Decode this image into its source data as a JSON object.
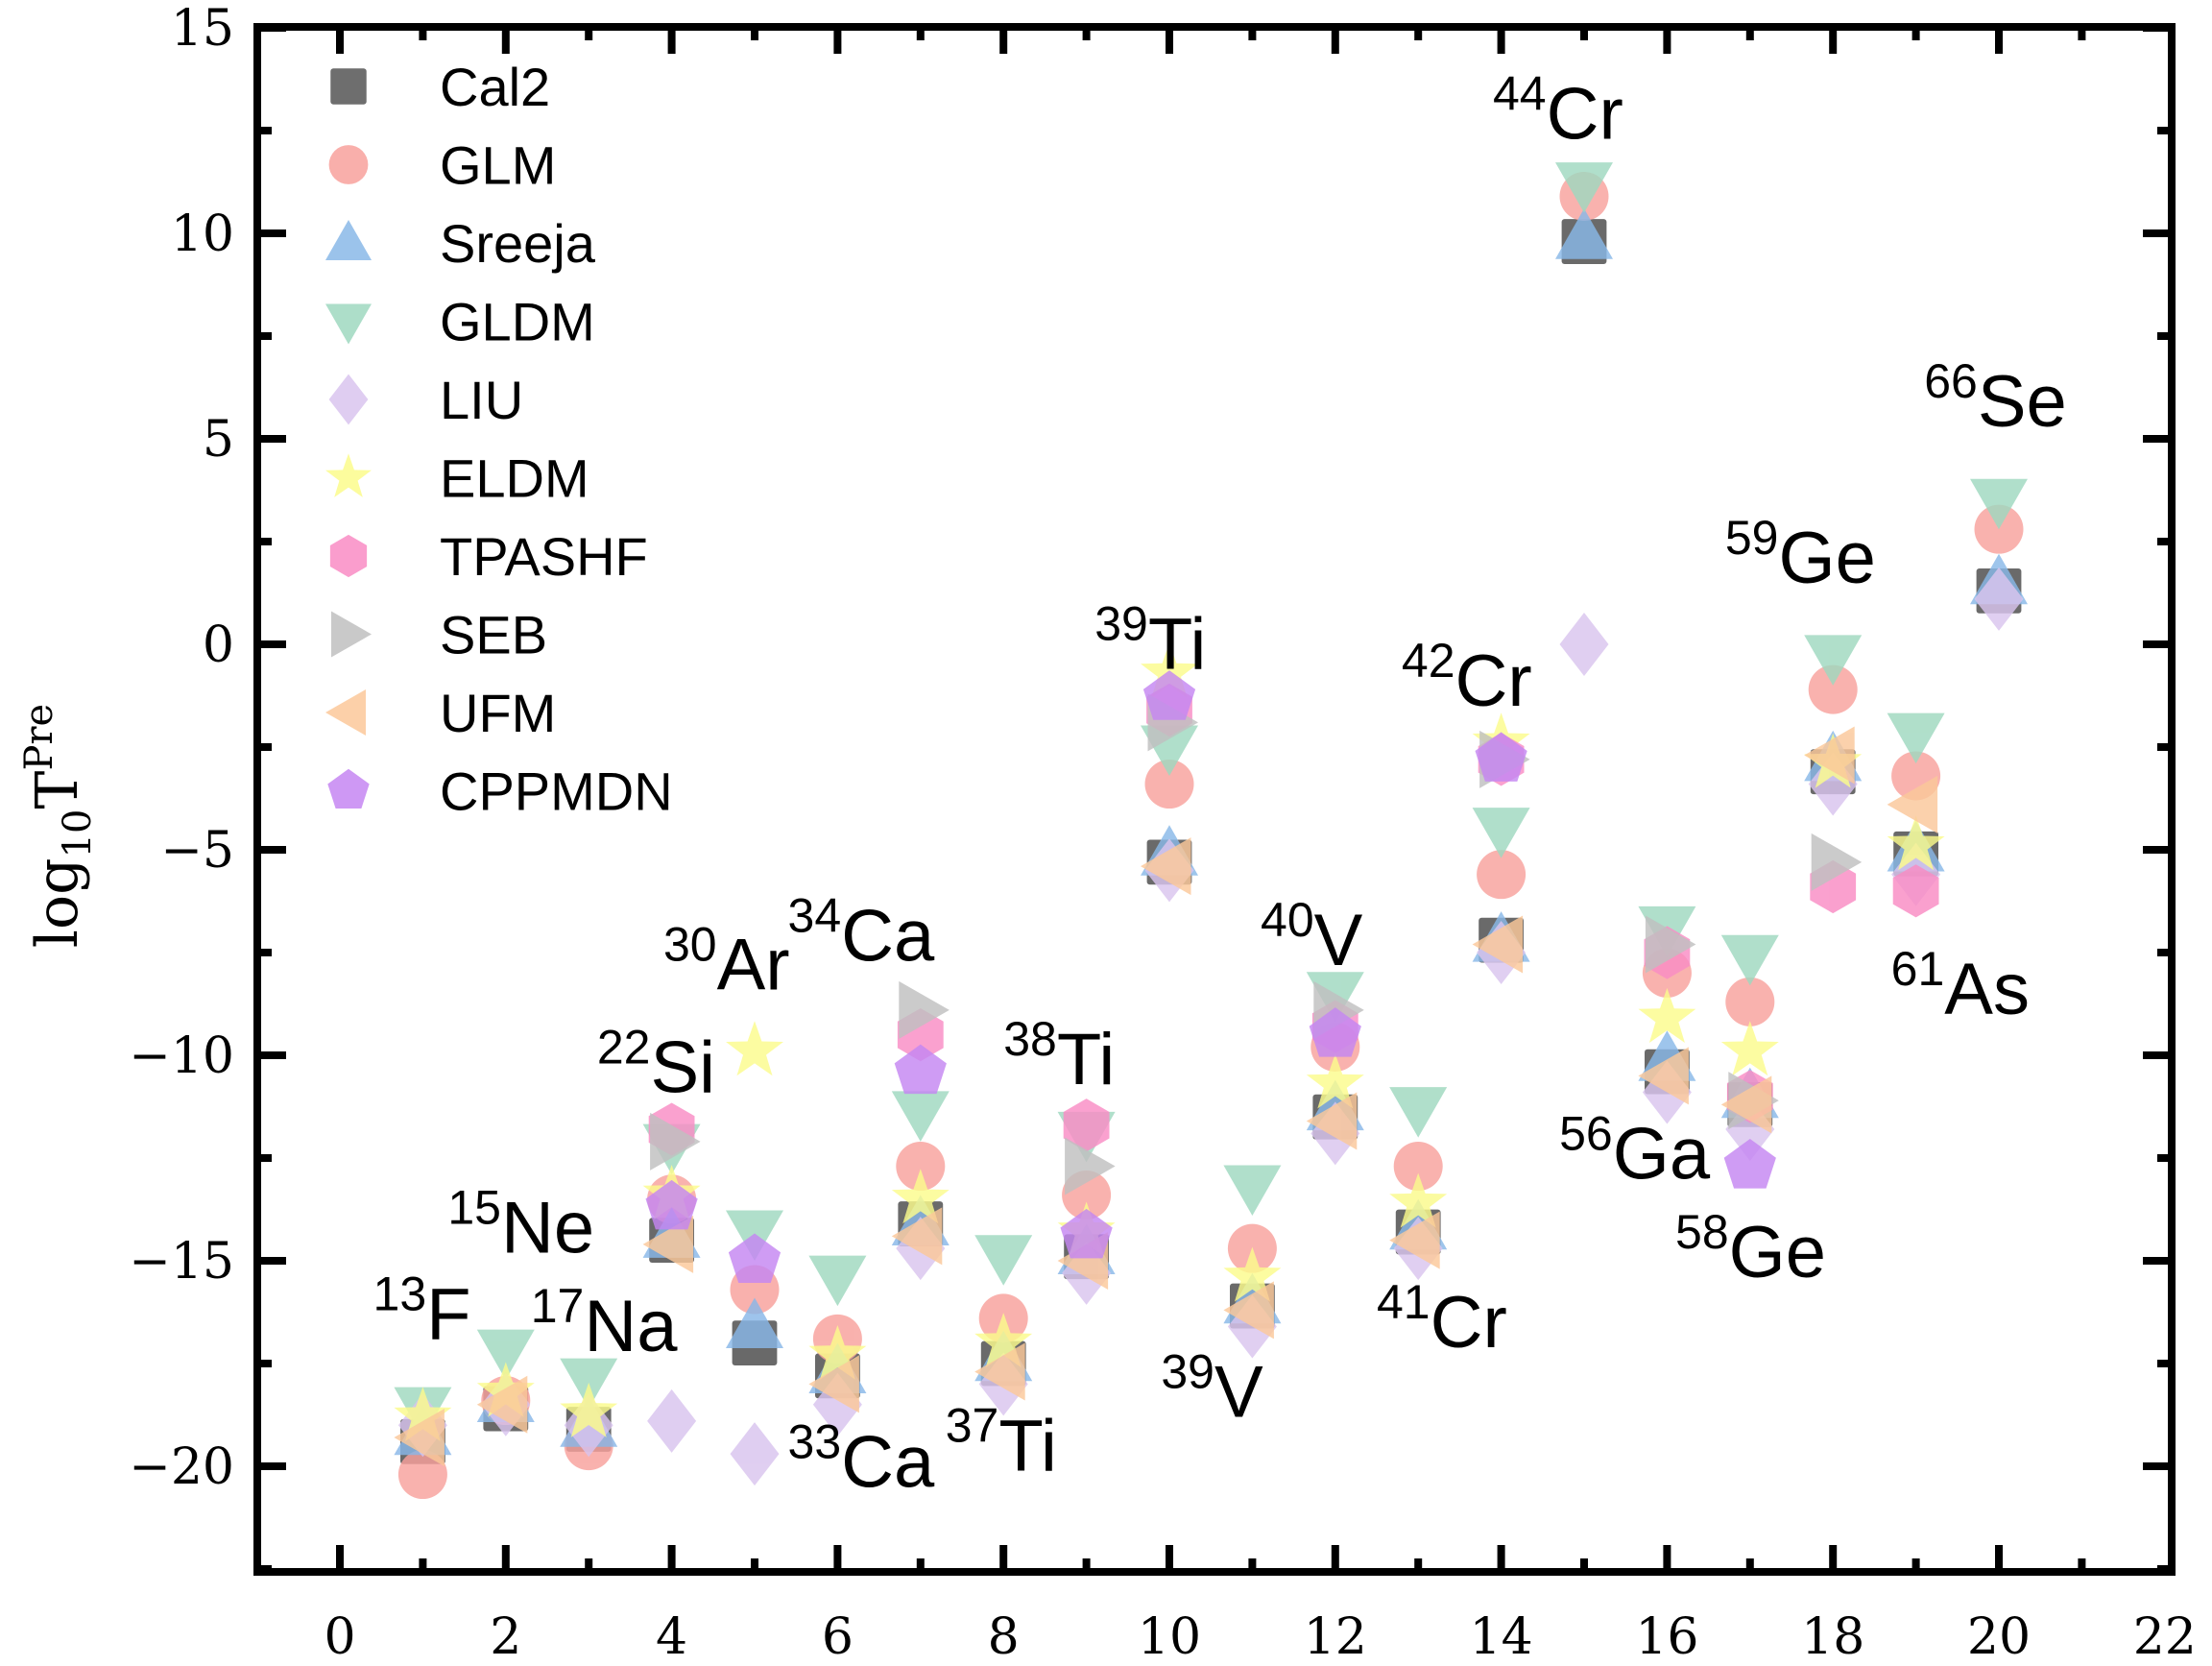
{
  "chart_data": {
    "type": "scatter",
    "title": "",
    "xlabel": "",
    "ylabel": "log10TPre",
    "ylabel_parts": {
      "base": "log",
      "sub": "10",
      "main": "T",
      "sup": "Pre"
    },
    "xlim": [
      -1,
      22
    ],
    "ylim": [
      -22.5,
      15
    ],
    "x_ticks": [
      0,
      2,
      4,
      6,
      8,
      10,
      12,
      14,
      16,
      18,
      20,
      22
    ],
    "x_tick_labels": [
      "0",
      "2",
      "4",
      "6",
      "8",
      "10",
      "12",
      "14",
      "16",
      "18",
      "20",
      "22"
    ],
    "y_ticks": [
      -20,
      -15,
      -10,
      -5,
      0,
      5,
      10,
      15
    ],
    "y_tick_labels": [
      "−20",
      "−15",
      "−10",
      "−5",
      "0",
      "5",
      "10",
      "15"
    ],
    "grid": false,
    "legend_position": "top-left",
    "series": [
      {
        "name": "Cal2",
        "marker": "square",
        "color": "#555555",
        "x": [
          1,
          2,
          3,
          4,
          5,
          6,
          7,
          8,
          9,
          10,
          11,
          12,
          13,
          14,
          15,
          16,
          17,
          18,
          19,
          20
        ],
        "y": [
          -19.4,
          -18.6,
          -19.1,
          -14.5,
          -17.0,
          -17.8,
          -14.1,
          -17.5,
          -14.9,
          -5.3,
          -16.1,
          -11.5,
          -14.3,
          -7.2,
          9.8,
          -10.4,
          -11.2,
          -3.1,
          -5.1,
          1.3
        ]
      },
      {
        "name": "GLM",
        "marker": "circle",
        "color": "#f8a19c",
        "x": [
          1,
          2,
          3,
          4,
          5,
          6,
          7,
          8,
          9,
          10,
          11,
          12,
          13,
          14,
          15,
          16,
          17,
          18,
          19,
          20
        ],
        "y": [
          -20.2,
          -18.4,
          -19.5,
          -13.5,
          -15.7,
          -16.9,
          -12.7,
          -16.4,
          -13.4,
          -3.4,
          -14.7,
          -9.8,
          -12.7,
          -5.6,
          10.9,
          -8.0,
          -8.7,
          -1.1,
          -3.2,
          2.8
        ]
      },
      {
        "name": "Sreeja",
        "marker": "triangle-up",
        "color": "#89b8e8",
        "x": [
          1,
          2,
          3,
          4,
          5,
          6,
          7,
          8,
          9,
          10,
          11,
          12,
          13,
          14,
          15,
          16,
          17,
          18,
          19,
          20
        ],
        "y": [
          -19.2,
          -18.4,
          -19.0,
          -14.4,
          -16.6,
          -17.7,
          -14.1,
          -17.4,
          -14.8,
          -5.1,
          -16.0,
          -11.3,
          -14.2,
          -7.2,
          9.9,
          -10.1,
          -11.0,
          -2.8,
          -5.0,
          1.5
        ]
      },
      {
        "name": "GLDM",
        "marker": "triangle-down",
        "color": "#9fd8bf",
        "x": [
          1,
          2,
          3,
          4,
          5,
          6,
          7,
          8,
          9,
          10,
          11,
          12,
          13,
          14,
          15,
          16,
          17,
          18,
          19,
          20
        ],
        "y": [
          -18.6,
          -17.2,
          -17.9,
          -12.2,
          -14.3,
          -15.4,
          -11.4,
          -14.9,
          -11.9,
          -2.5,
          -13.2,
          -8.5,
          -11.3,
          -4.5,
          11.2,
          -6.9,
          -7.6,
          -0.3,
          -2.2,
          3.5
        ]
      },
      {
        "name": "LIU",
        "marker": "diamond",
        "color": "#d9c4ee",
        "x": [
          1,
          2,
          3,
          4,
          5,
          6,
          7,
          8,
          9,
          10,
          11,
          12,
          13,
          14,
          15,
          16,
          17,
          18,
          19,
          20
        ],
        "y": [
          -19.0,
          -18.5,
          -19.0,
          -18.9,
          -19.7,
          -18.5,
          -14.7,
          -18.0,
          -15.3,
          -5.5,
          -16.6,
          -11.9,
          -14.7,
          -7.5,
          0.0,
          -10.9,
          -11.8,
          -3.4,
          -5.6,
          1.1
        ]
      },
      {
        "name": "ELDM",
        "marker": "star",
        "color": "#fbfb8c",
        "x": [
          1,
          2,
          3,
          4,
          5,
          6,
          7,
          8,
          9,
          10,
          11,
          12,
          13,
          14,
          16,
          17,
          18,
          19
        ],
        "y": [
          -18.8,
          -18.2,
          -18.7,
          -13.4,
          -9.9,
          -17.3,
          -13.5,
          -17.0,
          -14.3,
          -0.7,
          -15.4,
          -10.7,
          -13.6,
          -2.4,
          -9.1,
          -9.9,
          -2.9,
          -4.9
        ]
      },
      {
        "name": "TPASHF",
        "marker": "hexagon",
        "color": "#f98cc4",
        "x": [
          4,
          7,
          9,
          10,
          12,
          14,
          16,
          17,
          18,
          19
        ],
        "y": [
          -11.8,
          -9.5,
          -11.7,
          -1.6,
          -9.3,
          -2.8,
          -7.5,
          -11.0,
          -5.9,
          -6.0
        ]
      },
      {
        "name": "SEB",
        "marker": "triangle-right",
        "color": "#c0c0c0",
        "x": [
          4,
          7,
          9,
          10,
          12,
          14,
          16,
          17,
          18
        ],
        "y": [
          -12.1,
          -8.9,
          -12.7,
          -1.9,
          -8.9,
          -2.8,
          -7.3,
          -11.1,
          -5.3
        ]
      },
      {
        "name": "UFM",
        "marker": "triangle-left",
        "color": "#fbc89a",
        "x": [
          1,
          2,
          4,
          6,
          7,
          8,
          9,
          10,
          11,
          12,
          13,
          14,
          16,
          17,
          18,
          19
        ],
        "y": [
          -19.3,
          -18.5,
          -14.6,
          -18.0,
          -14.4,
          -17.7,
          -15.0,
          -5.4,
          -16.2,
          -11.6,
          -14.5,
          -7.3,
          -10.5,
          -11.2,
          -2.7,
          -3.9
        ]
      },
      {
        "name": "CPPMDN",
        "marker": "pentagon",
        "color": "#c586f2",
        "x": [
          4,
          5,
          7,
          9,
          10,
          12,
          14,
          17
        ],
        "y": [
          -13.7,
          -15.0,
          -10.4,
          -14.4,
          -1.3,
          -9.5,
          -2.8,
          -12.7
        ]
      }
    ],
    "annotations": [
      {
        "mass": "13",
        "element": "F",
        "x": 0.4,
        "y": -16.9
      },
      {
        "mass": "15",
        "element": "Ne",
        "x": 1.3,
        "y": -14.8
      },
      {
        "mass": "17",
        "element": "Na",
        "x": 2.3,
        "y": -17.2
      },
      {
        "mass": "22",
        "element": "Si",
        "x": 3.1,
        "y": -10.9
      },
      {
        "mass": "30",
        "element": "Ar",
        "x": 3.9,
        "y": -8.4
      },
      {
        "mass": "34",
        "element": "Ca",
        "x": 5.4,
        "y": -7.7
      },
      {
        "mass": "33",
        "element": "Ca",
        "x": 5.4,
        "y": -20.5
      },
      {
        "mass": "37",
        "element": "Ti",
        "x": 7.3,
        "y": -20.1
      },
      {
        "mass": "38",
        "element": "Ti",
        "x": 8.0,
        "y": -10.7
      },
      {
        "mass": "39",
        "element": "Ti",
        "x": 9.1,
        "y": -0.6
      },
      {
        "mass": "39",
        "element": "V",
        "x": 9.9,
        "y": -18.8
      },
      {
        "mass": "40",
        "element": "V",
        "x": 11.1,
        "y": -7.8
      },
      {
        "mass": "41",
        "element": "Cr",
        "x": 12.5,
        "y": -17.1
      },
      {
        "mass": "42",
        "element": "Cr",
        "x": 12.8,
        "y": -1.5
      },
      {
        "mass": "44",
        "element": "Cr",
        "x": 13.9,
        "y": 12.3
      },
      {
        "mass": "56",
        "element": "Ga",
        "x": 14.7,
        "y": -13.0
      },
      {
        "mass": "58",
        "element": "Ge",
        "x": 16.1,
        "y": -15.4
      },
      {
        "mass": "59",
        "element": "Ge",
        "x": 16.7,
        "y": 1.5
      },
      {
        "mass": "61",
        "element": "As",
        "x": 18.7,
        "y": -9.0
      },
      {
        "mass": "66",
        "element": "Se",
        "x": 19.1,
        "y": 5.3
      }
    ]
  }
}
